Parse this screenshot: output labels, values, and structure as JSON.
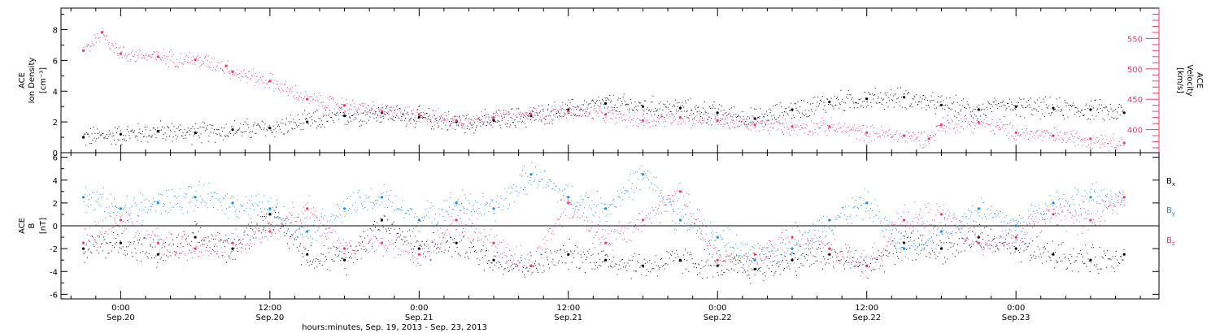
{
  "chart_data": [
    {
      "type": "scatter",
      "panel": "top",
      "ylabel_lines": [
        "ACE",
        "Ion Density",
        "[cm⁻³]"
      ],
      "ylim": [
        0,
        9.4
      ],
      "yticks": [
        0,
        2,
        4,
        6,
        8
      ],
      "ylabel_right_lines": [
        "ACE",
        "Velocity",
        "[km/s]"
      ],
      "ylim_right": [
        362,
        600
      ],
      "yticks_right": [
        400,
        450,
        500,
        550
      ],
      "yticks_right_labels": [
        "400",
        "450",
        "500",
        "550"
      ],
      "series": [
        {
          "name": "",
          "axis": "left",
          "color": "#000000",
          "x": [
            -3,
            0,
            3,
            6,
            9,
            12,
            15,
            18,
            21,
            24,
            27,
            30,
            33,
            36,
            39,
            42,
            45,
            48,
            51,
            54,
            57,
            60,
            63,
            66,
            69,
            72,
            75,
            78,
            80.7
          ],
          "y": [
            1.0,
            1.2,
            1.4,
            1.3,
            1.5,
            1.6,
            2.0,
            2.4,
            2.6,
            2.3,
            2.0,
            2.1,
            2.4,
            2.8,
            3.2,
            3.0,
            2.9,
            2.6,
            2.2,
            2.8,
            3.3,
            3.5,
            3.6,
            3.1,
            2.8,
            3.0,
            2.9,
            2.8,
            2.6
          ]
        },
        {
          "name": "",
          "axis": "right",
          "color": "#e83e6c",
          "x": [
            -3,
            -1.5,
            0,
            3,
            6,
            8.5,
            9,
            12,
            15,
            18,
            21,
            24,
            27,
            30,
            33,
            36,
            39,
            42,
            45,
            48,
            51,
            54,
            57,
            60,
            63,
            65,
            66,
            69,
            72,
            75,
            78,
            80.7
          ],
          "y": [
            530,
            560,
            525,
            520,
            515,
            505,
            495,
            480,
            450,
            440,
            430,
            425,
            415,
            420,
            425,
            430,
            425,
            415,
            420,
            415,
            408,
            405,
            405,
            395,
            390,
            385,
            408,
            412,
            395,
            390,
            385,
            378
          ]
        }
      ]
    },
    {
      "type": "scatter",
      "panel": "bottom",
      "ylabel_lines": [
        "ACE",
        "B",
        "[nT]"
      ],
      "ylim": [
        -6.4,
        6.4
      ],
      "yticks": [
        -6,
        -4,
        -2,
        0,
        2,
        4,
        6
      ],
      "x_range_hours": [
        -4.8,
        83.5
      ],
      "xticks": [
        0,
        12,
        24,
        36,
        48,
        60,
        72,
        84
      ],
      "xtick_labels_top": [
        "0:00",
        "12:00",
        "0:00",
        "12:00",
        "0:00",
        "12:00",
        "0:00"
      ],
      "xtick_labels_bottom": [
        "Sep.20",
        "Sep.20",
        "Sep.21",
        "Sep.21",
        "Sep.22",
        "Sep.22",
        "Sep.23"
      ],
      "xlabel": "hours:minutes, Sep. 19, 2013 - Sep. 23, 2013",
      "legend_placement": "right",
      "series": [
        {
          "name": "B",
          "sub": "x",
          "color": "#000000",
          "x": [
            -3,
            0,
            3,
            6,
            9,
            12,
            15,
            18,
            21,
            24,
            27,
            30,
            33,
            36,
            39,
            42,
            45,
            48,
            51,
            54,
            57,
            60,
            63,
            66,
            69,
            72,
            75,
            78,
            80.7
          ],
          "y": [
            -2,
            -1.5,
            -2.5,
            -1.0,
            -2.0,
            1.0,
            -2.5,
            -3.0,
            0.5,
            -2.0,
            -1.5,
            -3.0,
            -3.5,
            -2.5,
            -3.0,
            -3.5,
            -3.0,
            -3.5,
            -3.8,
            -3.0,
            -2.5,
            -3.5,
            -1.5,
            -2.0,
            -1.0,
            -2.0,
            -2.5,
            -3.0,
            -2.5
          ]
        },
        {
          "name": "B",
          "sub": "y",
          "color": "#1e88e5",
          "x": [
            -3,
            0,
            3,
            6,
            9,
            12,
            15,
            18,
            21,
            24,
            27,
            30,
            33,
            36,
            39,
            42,
            45,
            48,
            51,
            54,
            57,
            60,
            63,
            66,
            69,
            72,
            75,
            78,
            80.7
          ],
          "y": [
            2.5,
            1.5,
            2.0,
            2.5,
            2.0,
            1.5,
            -0.5,
            1.5,
            2.5,
            0.5,
            2.0,
            1.5,
            4.5,
            2.5,
            1.5,
            4.5,
            0.5,
            -1.0,
            -3.0,
            -2.0,
            0.5,
            2.0,
            -2.0,
            -0.5,
            1.5,
            0.0,
            2.0,
            2.5,
            2.5
          ]
        },
        {
          "name": "B",
          "sub": "z",
          "color": "#e83e6c",
          "x": [
            -3,
            0,
            3,
            6,
            9,
            12,
            15,
            18,
            21,
            24,
            27,
            30,
            33,
            36,
            39,
            42,
            45,
            48,
            51,
            54,
            57,
            60,
            63,
            66,
            69,
            72,
            75,
            78,
            80.7
          ],
          "y": [
            -1.5,
            0.5,
            -1.5,
            -2.0,
            -1.5,
            -0.5,
            1.5,
            -2.0,
            -1.5,
            -2.5,
            0.5,
            -1.5,
            -3.5,
            2.0,
            -1.5,
            0.5,
            3.0,
            -3.0,
            -2.5,
            -1.0,
            -2.0,
            -3.5,
            0.5,
            1.0,
            -1.5,
            -1.0,
            1.0,
            0.5,
            2.5
          ]
        }
      ]
    }
  ]
}
